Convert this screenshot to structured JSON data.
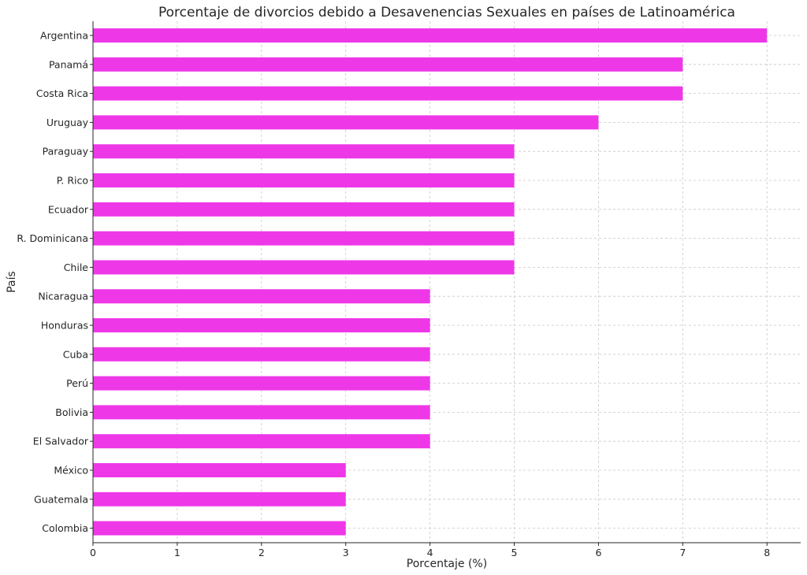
{
  "chart_data": {
    "type": "bar",
    "orientation": "horizontal",
    "title": "Porcentaje de divorcios debido a Desavenencias Sexuales en países de Latinoamérica",
    "xlabel": "Porcentaje (%)",
    "ylabel": "País",
    "categories": [
      "Argentina",
      "Panamá",
      "Costa Rica",
      "Uruguay",
      "Paraguay",
      "P. Rico",
      "Ecuador",
      "R. Dominicana",
      "Chile",
      "Nicaragua",
      "Honduras",
      "Cuba",
      "Perú",
      "Bolivia",
      "El Salvador",
      "México",
      "Guatemala",
      "Colombia"
    ],
    "values": [
      8,
      7,
      7,
      6,
      5,
      5,
      5,
      5,
      5,
      4,
      4,
      4,
      4,
      4,
      4,
      3,
      3,
      3
    ],
    "xlim": [
      0,
      8.4
    ],
    "xticks": [
      0,
      1,
      2,
      3,
      4,
      5,
      6,
      7,
      8
    ],
    "grid": true,
    "bar_color": "#ee38e8"
  }
}
